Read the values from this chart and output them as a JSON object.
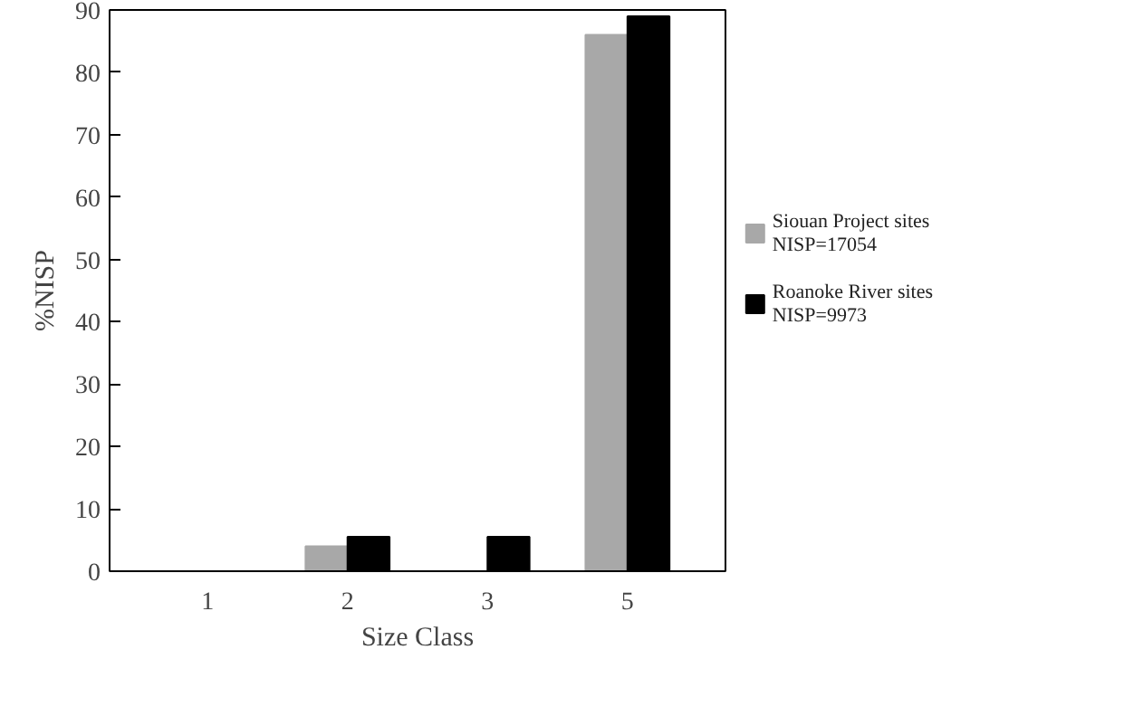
{
  "chart_data": {
    "type": "bar",
    "xlabel": "Size Class",
    "ylabel": "%NISP",
    "categories": [
      "1",
      "2",
      "3",
      "5"
    ],
    "series": [
      {
        "name": "Siouan Project sites\nNISP=17054",
        "color": "#a8a8a8",
        "values": [
          0,
          4,
          0,
          86
        ]
      },
      {
        "name": "Roanoke River sites\nNISP=9973",
        "color": "#000000",
        "values": [
          0,
          5.5,
          5.5,
          89
        ]
      }
    ],
    "ylim": [
      0,
      90
    ],
    "yticks": [
      0,
      10,
      20,
      30,
      40,
      50,
      60,
      70,
      80,
      90
    ],
    "grid": false,
    "legend": "right"
  }
}
